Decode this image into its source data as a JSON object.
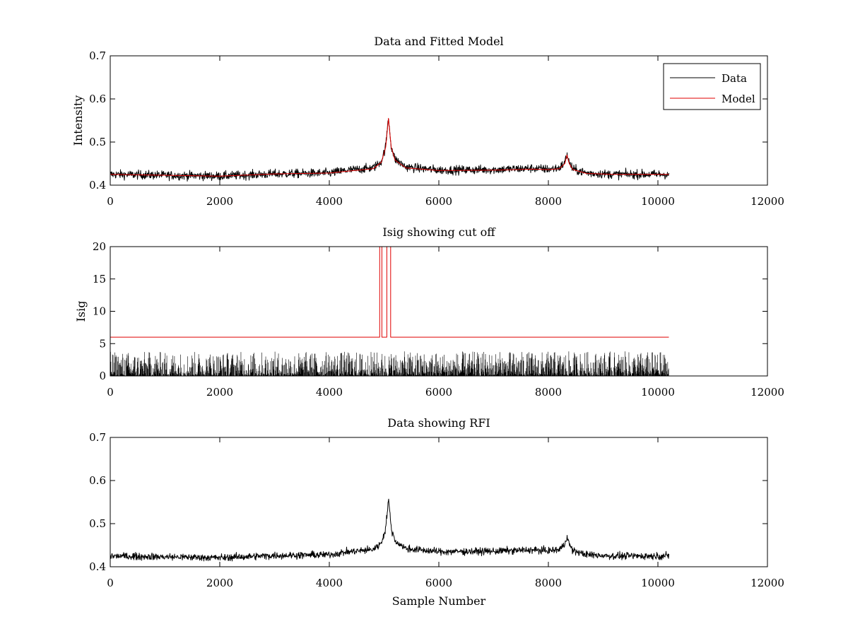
{
  "figure": {
    "background": "#ffffff",
    "data_color": "#000000",
    "model_color": "#e00000"
  },
  "chart_data": [
    {
      "type": "line",
      "title": "Data and Fitted Model",
      "xlabel": "",
      "ylabel": "Intensity",
      "xlim": [
        0,
        12000
      ],
      "ylim": [
        0.4,
        0.7
      ],
      "xticks": [
        0,
        2000,
        4000,
        6000,
        8000,
        10000,
        12000
      ],
      "yticks": [
        0.4,
        0.5,
        0.6,
        0.7
      ],
      "xtick_labels": [
        "0",
        "2000",
        "4000",
        "6000",
        "8000",
        "10000",
        "12000"
      ],
      "ytick_labels": [
        "0.4",
        "0.5",
        "0.6",
        "0.7"
      ],
      "legend": {
        "position": "top-right",
        "entries": [
          "Data",
          "Model"
        ]
      },
      "series": [
        {
          "name": "Data",
          "kind": "noisy",
          "color": "#000000",
          "x": [
            0,
            1000,
            2000,
            3000,
            4000,
            4300,
            4800,
            4950,
            5030,
            5080,
            5130,
            5200,
            5400,
            6000,
            7000,
            7700,
            8000,
            8200,
            8300,
            8340,
            8380,
            8450,
            8700,
            9200,
            10200
          ],
          "y": [
            0.425,
            0.423,
            0.421,
            0.426,
            0.428,
            0.434,
            0.44,
            0.455,
            0.49,
            0.558,
            0.49,
            0.46,
            0.442,
            0.435,
            0.436,
            0.439,
            0.437,
            0.44,
            0.452,
            0.473,
            0.452,
            0.437,
            0.428,
            0.425,
            0.425
          ],
          "noise": 0.005
        },
        {
          "name": "Model",
          "kind": "smooth",
          "color": "#e00000",
          "x": [
            0,
            1000,
            2000,
            3000,
            4000,
            4300,
            4800,
            4950,
            5030,
            5080,
            5130,
            5200,
            5400,
            6000,
            7000,
            7700,
            8000,
            8200,
            8300,
            8340,
            8380,
            8450,
            8700,
            9200,
            10200
          ],
          "y": [
            0.425,
            0.423,
            0.421,
            0.426,
            0.428,
            0.432,
            0.438,
            0.453,
            0.488,
            0.555,
            0.488,
            0.458,
            0.44,
            0.434,
            0.435,
            0.437,
            0.436,
            0.438,
            0.45,
            0.47,
            0.45,
            0.436,
            0.427,
            0.425,
            0.425
          ]
        }
      ]
    },
    {
      "type": "line",
      "title": "Isig showing cut off",
      "xlabel": "",
      "ylabel": "Isig",
      "xlim": [
        0,
        12000
      ],
      "ylim": [
        0,
        20
      ],
      "xticks": [
        0,
        2000,
        4000,
        6000,
        8000,
        10000,
        12000
      ],
      "yticks": [
        0,
        5,
        10,
        15,
        20
      ],
      "xtick_labels": [
        "0",
        "2000",
        "4000",
        "6000",
        "8000",
        "10000",
        "12000"
      ],
      "ytick_labels": [
        "0",
        "5",
        "10",
        "15",
        "20"
      ],
      "series": [
        {
          "name": "Isig",
          "kind": "spiky",
          "color": "#000000",
          "x": [
            0,
            10200
          ],
          "y": [
            0.5,
            0.5
          ],
          "noise": 3.8
        },
        {
          "name": "Cut off",
          "kind": "step",
          "color": "#e00000",
          "x": [
            0,
            4920,
            4920,
            4960,
            4960,
            5050,
            5050,
            5120,
            5120,
            10200
          ],
          "y": [
            6,
            6,
            20,
            20,
            6,
            6,
            20,
            20,
            6,
            6
          ]
        }
      ]
    },
    {
      "type": "line",
      "title": "Data showing RFI",
      "xlabel": "Sample Number",
      "ylabel": "",
      "xlim": [
        0,
        12000
      ],
      "ylim": [
        0.4,
        0.7
      ],
      "xticks": [
        0,
        2000,
        4000,
        6000,
        8000,
        10000,
        12000
      ],
      "yticks": [
        0.4,
        0.5,
        0.6,
        0.7
      ],
      "xtick_labels": [
        "0",
        "2000",
        "4000",
        "6000",
        "8000",
        "10000",
        "12000"
      ],
      "ytick_labels": [
        "0.4",
        "0.5",
        "0.6",
        "0.7"
      ],
      "series": [
        {
          "name": "Data",
          "kind": "noisy",
          "color": "#000000",
          "x": [
            0,
            1000,
            2000,
            3000,
            4000,
            4300,
            4800,
            4950,
            5030,
            5080,
            5130,
            5200,
            5400,
            6000,
            7000,
            7700,
            8000,
            8200,
            8300,
            8340,
            8380,
            8450,
            8700,
            9200,
            10200
          ],
          "y": [
            0.425,
            0.423,
            0.421,
            0.426,
            0.428,
            0.434,
            0.44,
            0.455,
            0.49,
            0.558,
            0.49,
            0.46,
            0.442,
            0.435,
            0.436,
            0.439,
            0.437,
            0.44,
            0.452,
            0.473,
            0.452,
            0.437,
            0.428,
            0.425,
            0.425
          ],
          "noise": 0.004
        }
      ]
    }
  ]
}
